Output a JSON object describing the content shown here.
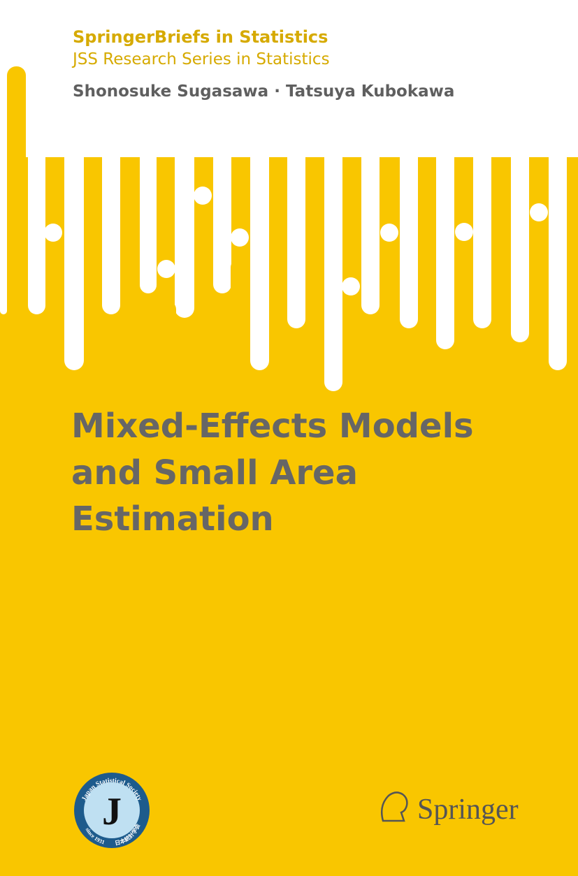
{
  "cover": {
    "series": "SpringerBriefs in Statistics",
    "subseries": "JSS Research Series in Statistics",
    "authors": [
      "Shonosuke Sugasawa",
      "Tatsuya Kubokawa"
    ],
    "author_separator": "·",
    "title_lines": [
      "Mixed-Effects Models",
      "and Small Area",
      "Estimation"
    ],
    "society_logo": {
      "name": "Japan Statistical Society",
      "letter": "J",
      "since": "since 1931",
      "name_ja": "日本統計学会"
    },
    "publisher": "Springer"
  }
}
